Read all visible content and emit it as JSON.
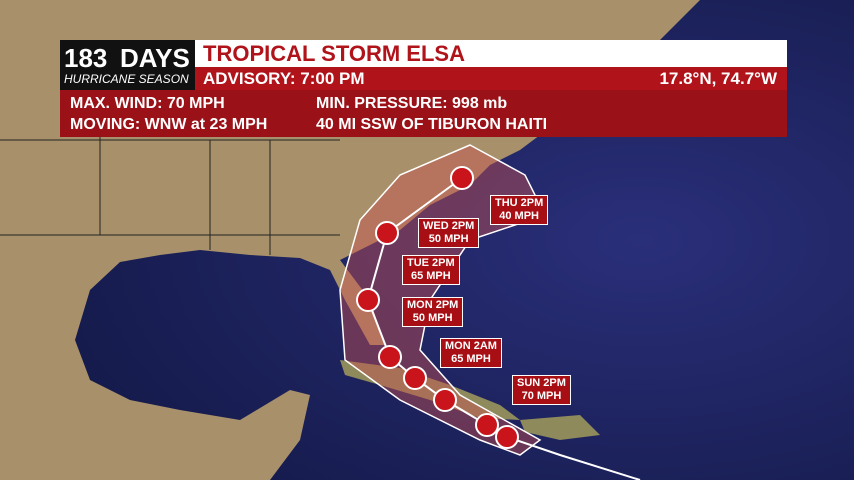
{
  "logo": {
    "number": "183",
    "word": "DAYS",
    "tagline": "HURRICANE SEASON"
  },
  "header": {
    "title": "TROPICAL STORM ELSA",
    "advisory": "ADVISORY: 7:00 PM",
    "position": "17.8°N, 74.7°W"
  },
  "details": {
    "max_wind": "MAX. WIND: 70 MPH",
    "min_pressure": "MIN. PRESSURE:  998 mb",
    "moving": "MOVING: WNW at 23 MPH",
    "location": "40 MI SSW OF TIBURON HAITI"
  },
  "forecast": [
    {
      "time": "THU 2PM",
      "wind": "40 MPH"
    },
    {
      "time": "WED 2PM",
      "wind": "50 MPH"
    },
    {
      "time": "TUE 2PM",
      "wind": "65 MPH"
    },
    {
      "time": "MON 2PM",
      "wind": "50 MPH"
    },
    {
      "time": "MON 2AM",
      "wind": "65 MPH"
    },
    {
      "time": "SUN 2PM",
      "wind": "70 MPH"
    }
  ]
}
